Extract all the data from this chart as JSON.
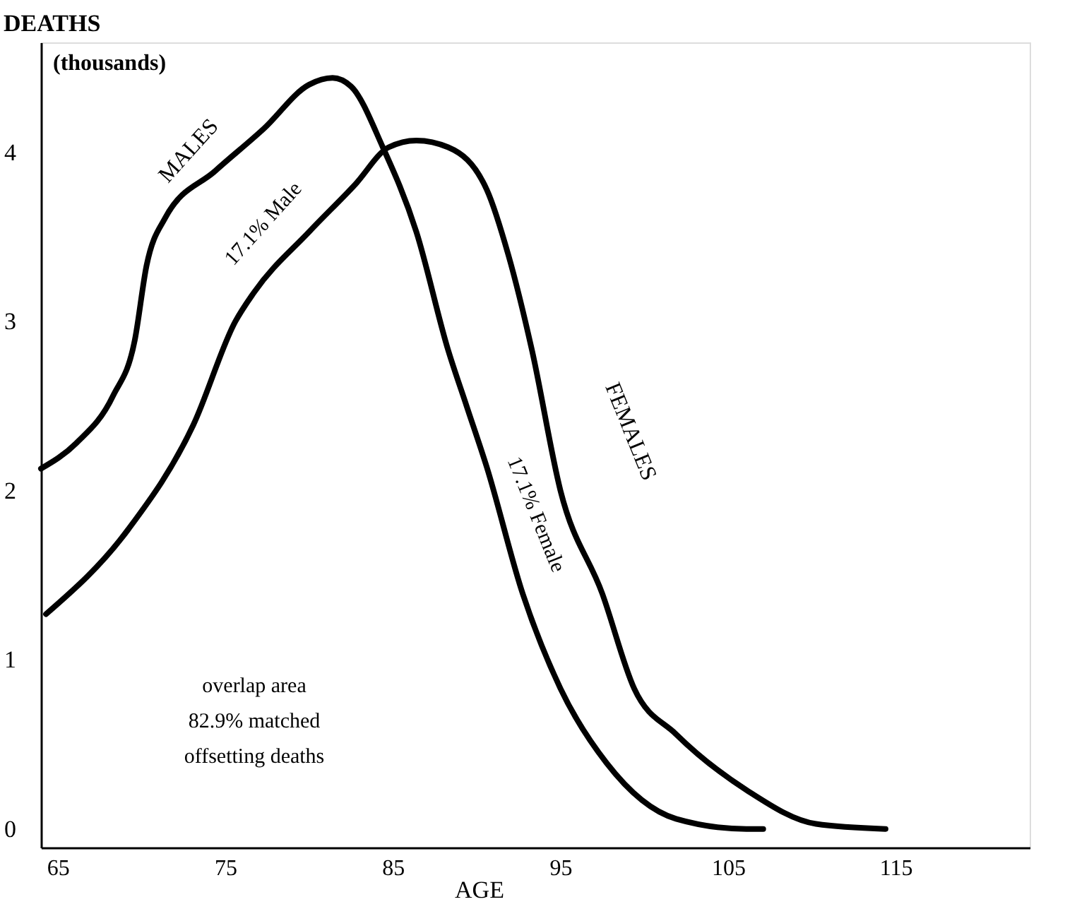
{
  "chart_data": {
    "type": "line",
    "title": "DEATHS",
    "ylabel": "(thousands)",
    "xlabel": "AGE",
    "xlim": [
      64,
      123
    ],
    "ylim": [
      -0.11,
      4.65
    ],
    "xticks": [
      65,
      75,
      85,
      95,
      105,
      115
    ],
    "yticks": [
      0,
      1,
      2,
      3,
      4
    ],
    "grid": false,
    "marker": "none",
    "line_style": "solid",
    "series": [
      {
        "name": "MALES",
        "color": "#000000",
        "x": [
          64.0,
          66.1,
          68.3,
          69.6,
          70.3,
          71.4,
          74.4,
          77.3,
          80.0,
          81.4,
          82.5,
          84.4,
          86.4,
          88.3,
          89.4,
          90.6,
          92.75,
          95.0,
          97.75,
          101.9,
          106.1,
          107.1
        ],
        "values": [
          2.13,
          2.28,
          2.56,
          2.89,
          3.33,
          3.61,
          3.89,
          4.14,
          4.4,
          4.44,
          4.39,
          4.03,
          3.53,
          2.83,
          2.5,
          2.14,
          1.39,
          0.83,
          0.39,
          0.06,
          0.0,
          0.0
        ]
      },
      {
        "name": "FEMALES",
        "color": "#000000",
        "x": [
          64.3,
          69.2,
          73.1,
          75.6,
          76.7,
          80.0,
          82.75,
          84.75,
          86.4,
          88.3,
          90.6,
          91.9,
          93.3,
          95.0,
          97.5,
          99.4,
          101.9,
          106.1,
          110.25,
          114.4
        ],
        "values": [
          1.27,
          1.77,
          2.39,
          3.0,
          3.17,
          3.53,
          3.81,
          4.03,
          4.07,
          4.03,
          3.78,
          3.39,
          2.83,
          2.0,
          1.39,
          0.83,
          0.56,
          0.23,
          0.03,
          0.0
        ]
      }
    ],
    "annotations": [
      "17.1% Male",
      "17.1% Female",
      "overlap area\n82.9% matched\noffsetting deaths"
    ]
  }
}
